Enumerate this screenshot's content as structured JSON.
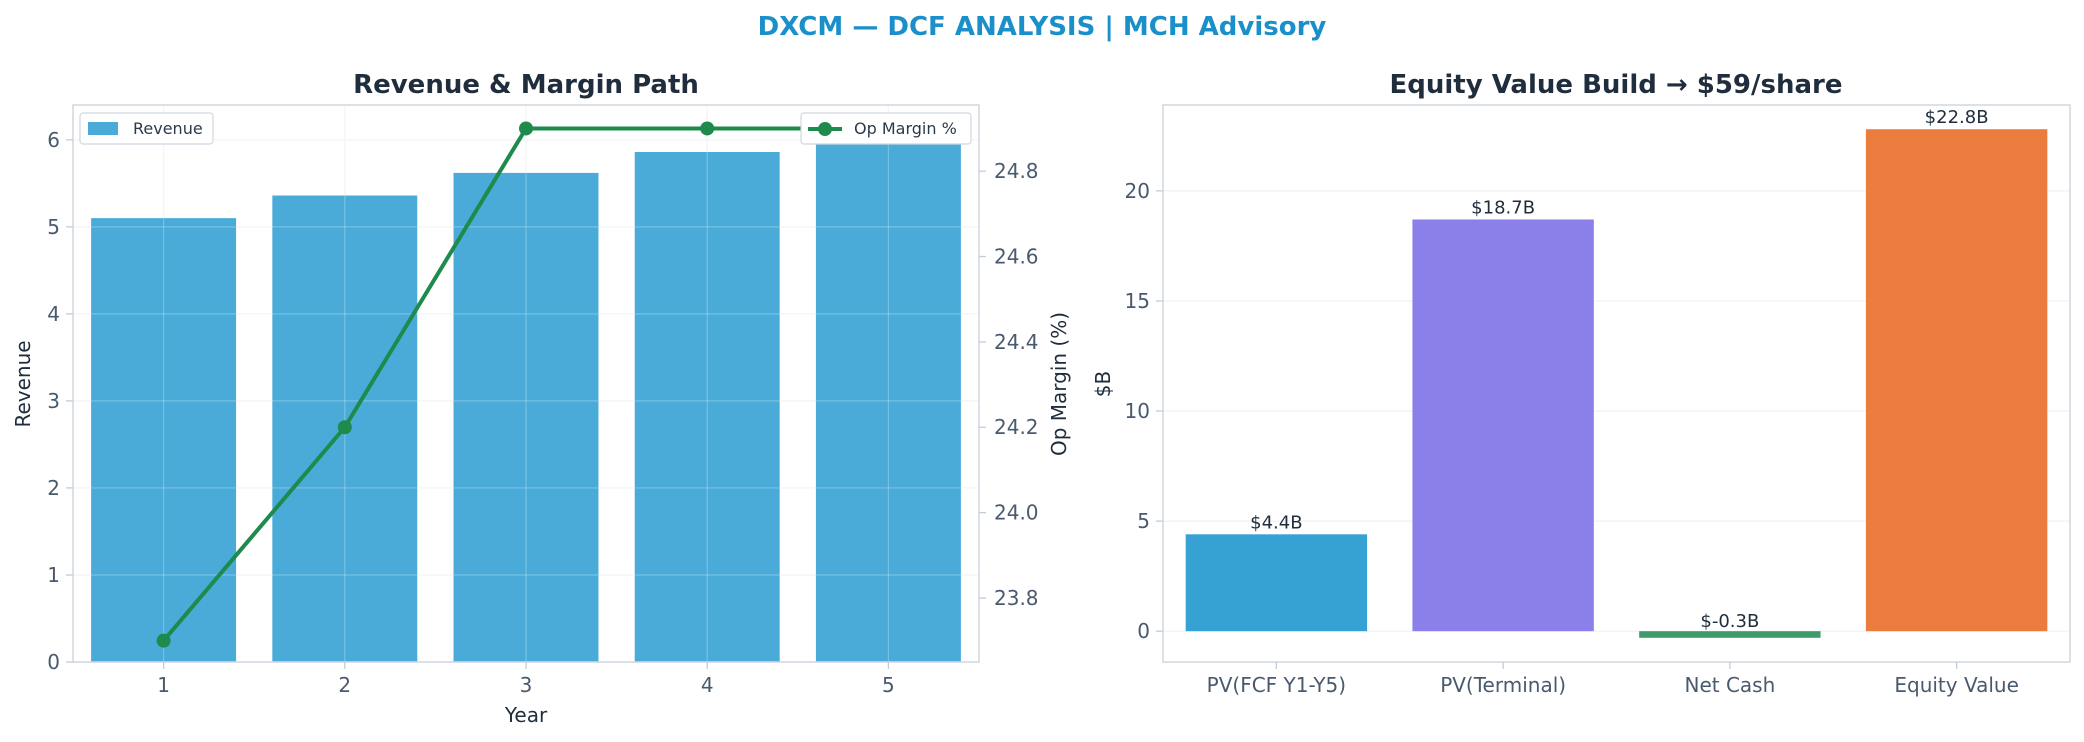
{
  "suptitle": "DXCM — DCF ANALYSIS | MCH Advisory",
  "colors": {
    "title": "#1a8fc9",
    "revenue_bar": "#4aabd9",
    "op_margin_line": "#1e8a4c",
    "pv_fcf": "#36a2d4",
    "pv_terminal": "#8b7fea",
    "net_cash": "#3d9c6a",
    "equity_value": "#ec7b3e"
  },
  "chart_data": [
    {
      "type": "bar",
      "title": "Revenue & Margin Path",
      "xlabel": "Year",
      "ylabel": "Revenue",
      "y2label": "Op Margin (%)",
      "categories": [
        "1",
        "2",
        "3",
        "4",
        "5"
      ],
      "ylim": [
        0,
        6.4
      ],
      "y_ticks": [
        "0",
        "1",
        "2",
        "3",
        "4",
        "5",
        "6"
      ],
      "y2lim": [
        23.65,
        24.955
      ],
      "y2_ticks": [
        "23.8",
        "24.0",
        "24.2",
        "24.4",
        "24.6",
        "24.8"
      ],
      "grid": true,
      "series": [
        {
          "name": "Revenue",
          "type": "bar",
          "axis": "left",
          "values": [
            5.1,
            5.36,
            5.62,
            5.86,
            6.12
          ]
        },
        {
          "name": "Op Margin %",
          "type": "line",
          "axis": "right",
          "values": [
            23.7,
            24.2,
            24.9,
            24.9,
            24.9
          ]
        }
      ],
      "legend": [
        {
          "label": "Revenue",
          "placement": "upper-left"
        },
        {
          "label": "Op Margin %",
          "placement": "upper-right"
        }
      ]
    },
    {
      "type": "bar",
      "title": "Equity Value Build → $59/share",
      "xlabel": "",
      "ylabel": "$B",
      "categories": [
        "PV(FCF Y1-Y5)",
        "PV(Terminal)",
        "Net Cash",
        "Equity Value"
      ],
      "values": [
        4.4,
        18.7,
        -0.3,
        22.8
      ],
      "data_labels": [
        "$4.4B",
        "$18.7B",
        "$-0.3B",
        "$22.8B"
      ],
      "ylim": [
        -1.4,
        23.9
      ],
      "y_ticks": [
        "0",
        "5",
        "10",
        "15",
        "20"
      ],
      "grid": true
    }
  ]
}
